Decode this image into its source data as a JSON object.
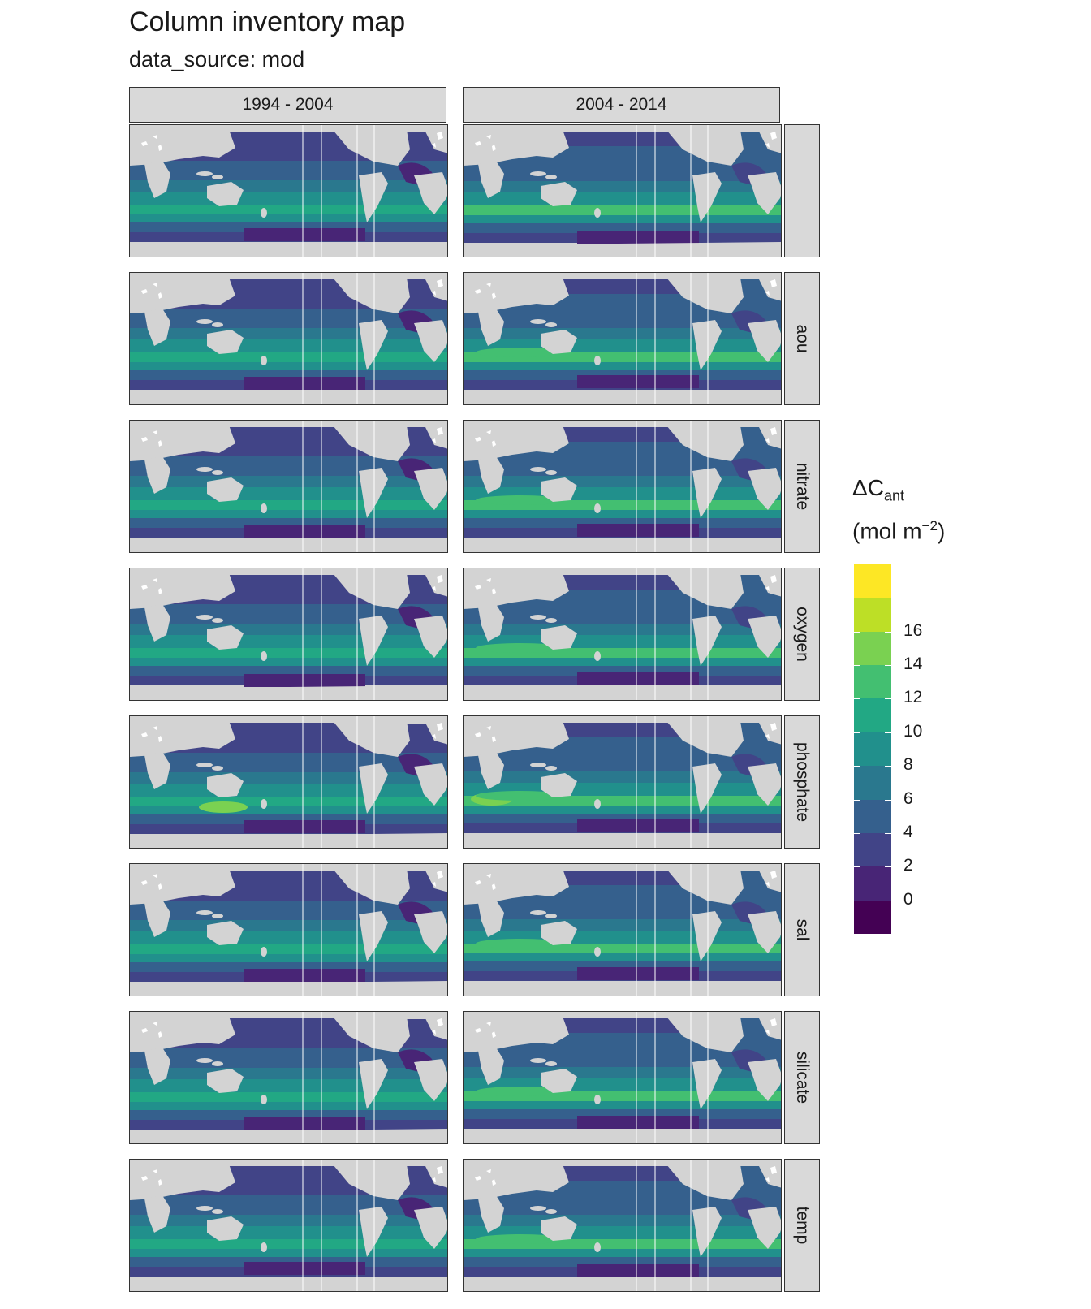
{
  "title": "Column inventory map",
  "subtitle": "data_source: mod",
  "columns": [
    "1994 - 2004",
    "2004 - 2014"
  ],
  "rows": [
    "",
    "aou",
    "nitrate",
    "oxygen",
    "phosphate",
    "sal",
    "silicate",
    "temp"
  ],
  "legend": {
    "title_main": "ΔC",
    "title_sub": "ant",
    "unit_main": "(mol m",
    "unit_sup": "−2",
    "unit_close": ")",
    "ticks": [
      "0",
      "2",
      "4",
      "6",
      "8",
      "10",
      "12",
      "14",
      "16"
    ],
    "colors": [
      "#440154",
      "#482576",
      "#414487",
      "#35608d",
      "#2a788e",
      "#21908c",
      "#22a884",
      "#43bf71",
      "#7ad151",
      "#bddf26",
      "#fde725"
    ]
  }
}
